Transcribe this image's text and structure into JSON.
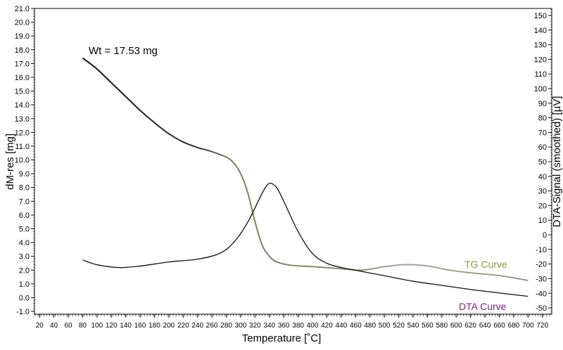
{
  "chart_data": {
    "type": "line",
    "title": "",
    "annotation": "Wt = 17.53 mg",
    "xlabel": "Temperature [˚C]",
    "ylabel": "dM-res [mg]",
    "y2label": "DTA-Signal (smoothed) [µV]",
    "xlim": [
      13,
      733
    ],
    "ylim": [
      -1.2,
      21.0
    ],
    "y2lim": [
      -54.3,
      154.8
    ],
    "xticks": [
      20,
      40,
      60,
      80,
      100,
      120,
      140,
      160,
      180,
      200,
      220,
      240,
      260,
      280,
      300,
      320,
      340,
      360,
      380,
      400,
      420,
      440,
      460,
      480,
      500,
      520,
      540,
      560,
      580,
      600,
      620,
      640,
      660,
      680,
      700,
      720
    ],
    "yticks": [
      "-1.0",
      "0.0",
      "1.0",
      "2.0",
      "3.0",
      "4.0",
      "5.0",
      "6.0",
      "7.0",
      "8.0",
      "9.0",
      "10.0",
      "11.0",
      "12.0",
      "13.0",
      "14.0",
      "15.0",
      "16.0",
      "17.0",
      "18.0",
      "19.0",
      "20.0",
      "21.0"
    ],
    "y2ticks": [
      -50,
      -40,
      -30,
      -20,
      -10,
      0,
      10,
      20,
      30,
      40,
      50,
      60,
      70,
      80,
      90,
      100,
      110,
      120,
      130,
      140,
      150
    ],
    "grid": false,
    "series": [
      {
        "name": "TG Curve",
        "axis": "left",
        "color": "#8a9a3a",
        "x": [
          80,
          100,
          120,
          140,
          160,
          180,
          200,
          220,
          240,
          260,
          280,
          290,
          300,
          310,
          320,
          330,
          340,
          350,
          370,
          400,
          440,
          470,
          500,
          530,
          560,
          590,
          620,
          660,
          700
        ],
        "y": [
          17.4,
          16.6,
          15.6,
          14.6,
          13.6,
          12.7,
          11.9,
          11.3,
          10.9,
          10.6,
          10.2,
          9.8,
          9.0,
          7.6,
          5.5,
          3.8,
          3.0,
          2.6,
          2.35,
          2.25,
          2.1,
          2.0,
          2.25,
          2.4,
          2.3,
          2.0,
          1.8,
          1.6,
          1.25
        ]
      },
      {
        "name": "DTA Curve",
        "axis": "right",
        "color": "#7a1f7a",
        "x": [
          80,
          100,
          130,
          160,
          200,
          240,
          270,
          290,
          310,
          330,
          340,
          350,
          360,
          380,
          400,
          420,
          440,
          470,
          500,
          540,
          580,
          620,
          660,
          700
        ],
        "y": [
          -17.2,
          -20.5,
          -22.4,
          -21.4,
          -18.6,
          -16.7,
          -12.9,
          -5.4,
          8.7,
          28.5,
          35.1,
          32.3,
          22.9,
          2.1,
          -12.9,
          -19.5,
          -22.4,
          -25.2,
          -28.0,
          -31.8,
          -34.6,
          -37.4,
          -39.8,
          -42.1
        ]
      }
    ]
  }
}
